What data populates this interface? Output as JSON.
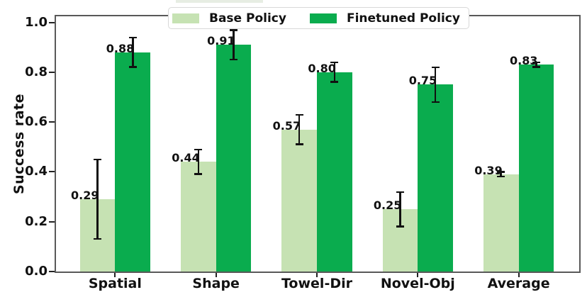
{
  "figure": {
    "colors": {
      "base_policy": "#c6e2b3",
      "finetuned_policy": "#0aac4e",
      "error_bar": "#111111",
      "spine": "#595959"
    }
  },
  "chart_data": {
    "type": "bar",
    "title": "",
    "xlabel": "",
    "ylabel": "Success rate",
    "categories": [
      "Spatial",
      "Shape",
      "Towel-Dir",
      "Novel-Obj",
      "Average"
    ],
    "series": [
      {
        "name": "Base Policy",
        "color": "#c6e2b3",
        "values": [
          0.29,
          0.44,
          0.57,
          0.25,
          0.39
        ],
        "errors": [
          0.16,
          0.05,
          0.06,
          0.07,
          0.01
        ]
      },
      {
        "name": "Finetuned Policy",
        "color": "#0aac4e",
        "values": [
          0.88,
          0.91,
          0.8,
          0.75,
          0.83
        ],
        "errors": [
          0.06,
          0.06,
          0.04,
          0.07,
          0.01
        ]
      }
    ],
    "yticks": [
      0.0,
      0.2,
      0.4,
      0.6,
      0.8,
      1.0
    ],
    "ylim": [
      0,
      1.03
    ],
    "xlim": [
      -0.6,
      4.6
    ],
    "bar_width": 0.35,
    "grid": false,
    "legend_position": "upper center",
    "value_labels": true
  }
}
